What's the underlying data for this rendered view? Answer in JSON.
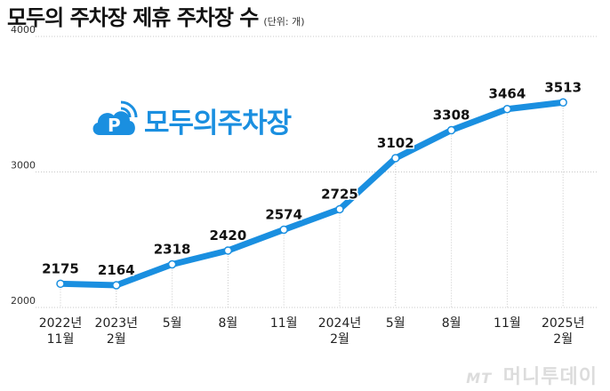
{
  "title": "모두의 주차장 제휴 주차장 수",
  "unit": "(단위: 개)",
  "logo": {
    "text": "모두의주차장",
    "icon": "parking-cloud-icon",
    "color": "#1a8fe0"
  },
  "watermark": {
    "mt": "MT",
    "text": "머니투데이"
  },
  "colors": {
    "line": "#1a8fe0",
    "marker_fill": "#ffffff",
    "grid": "#c8c8c8"
  },
  "chart_data": {
    "type": "line",
    "title": "모두의 주차장 제휴 주차장 수",
    "ylim": [
      2000,
      4000
    ],
    "yticks": [
      2000,
      3000,
      4000
    ],
    "grid": "horizontal and vertical dotted",
    "categories": [
      [
        "2022년",
        "11월"
      ],
      [
        "2023년",
        "2월"
      ],
      [
        "5월"
      ],
      [
        "8월"
      ],
      [
        "11월"
      ],
      [
        "2024년",
        "2월"
      ],
      [
        "5월"
      ],
      [
        "8월"
      ],
      [
        "11월"
      ],
      [
        "2025년",
        "2월"
      ]
    ],
    "values": [
      2175,
      2164,
      2318,
      2420,
      2574,
      2725,
      3102,
      3308,
      3464,
      3513
    ]
  }
}
